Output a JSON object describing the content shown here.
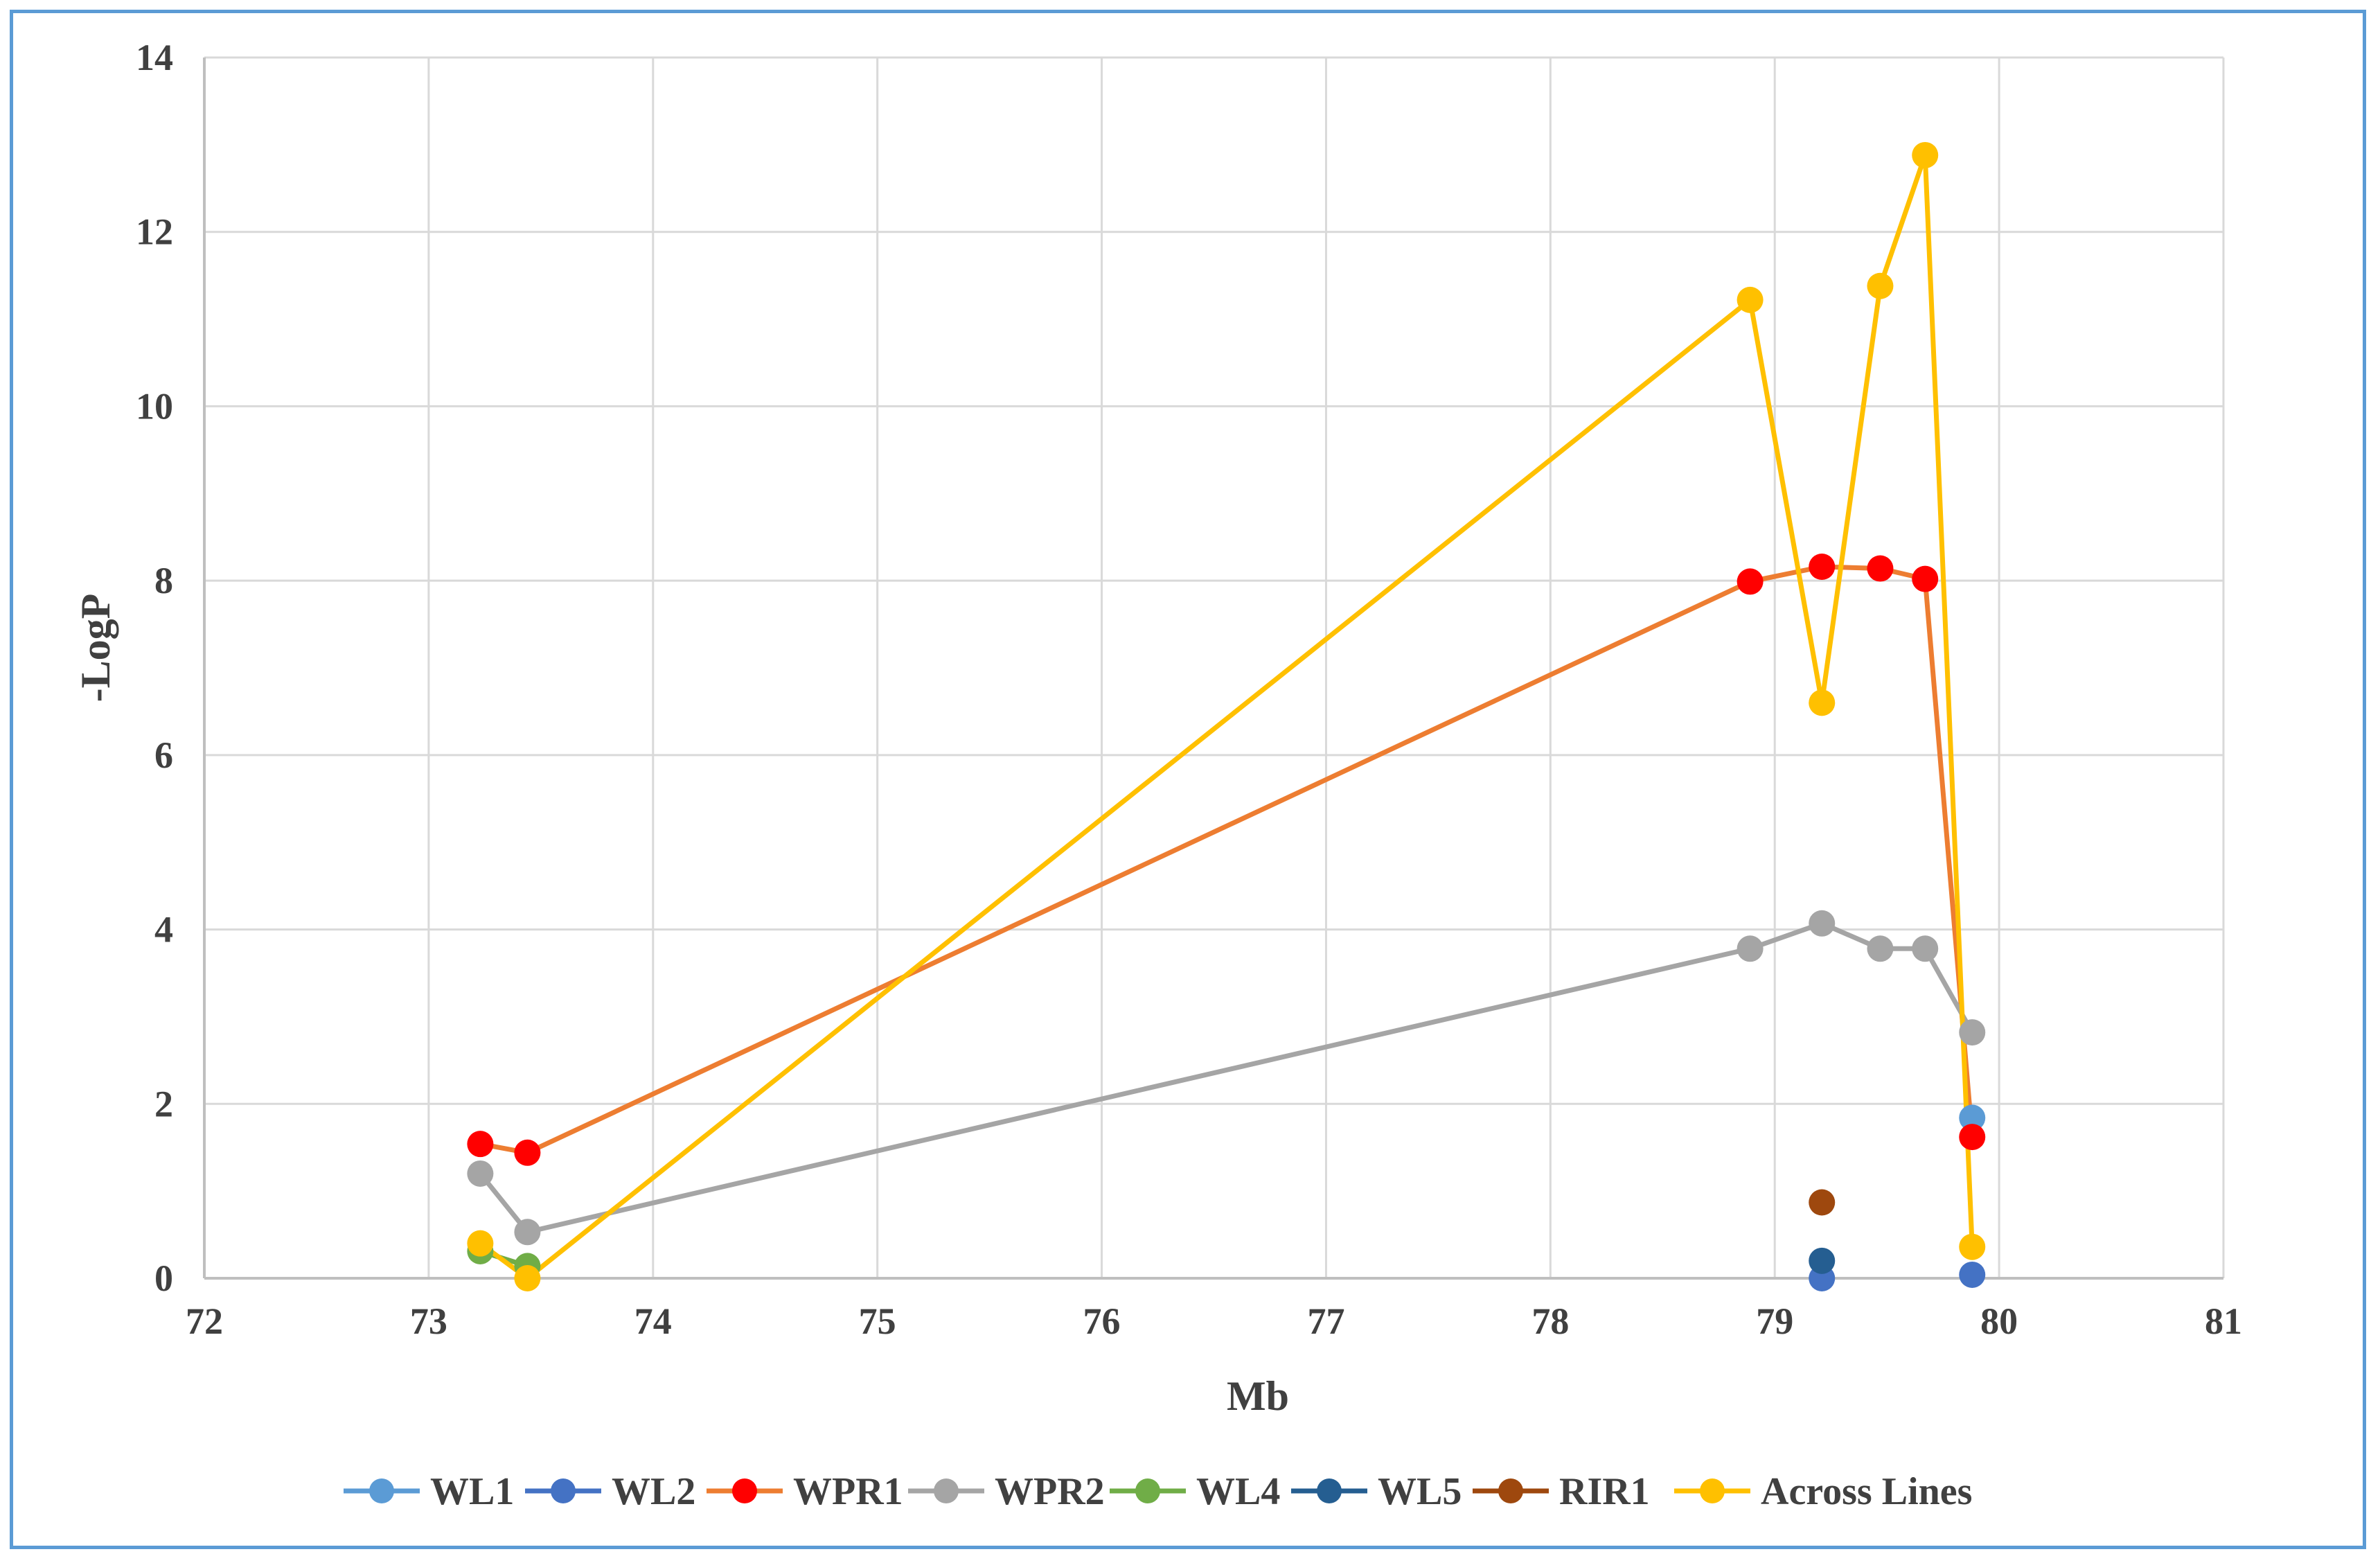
{
  "chart_data": {
    "type": "scatter",
    "title": "",
    "xlabel": "Mb",
    "ylabel": "-LogP",
    "xlim": [
      72,
      81
    ],
    "ylim": [
      0,
      14
    ],
    "xticks": [
      "72",
      "73",
      "74",
      "75",
      "76",
      "77",
      "78",
      "79",
      "80",
      "81"
    ],
    "yticks": [
      "0",
      "2",
      "4",
      "6",
      "8",
      "10",
      "12",
      "14"
    ],
    "grid": true,
    "legend_position": "bottom",
    "series": [
      {
        "name": "WL1",
        "line_color": "#5b9bd5",
        "marker_color": "#5b9bd5",
        "connected": false,
        "points": [
          [
            79.88,
            1.84
          ]
        ]
      },
      {
        "name": "WL2",
        "line_color": "#4472c4",
        "marker_color": "#4472c4",
        "connected": false,
        "points": [
          [
            79.21,
            0.0
          ],
          [
            79.88,
            0.04
          ]
        ]
      },
      {
        "name": "WPR1",
        "line_color": "#ed7d31",
        "marker_color": "#ff0000",
        "connected": true,
        "points": [
          [
            73.23,
            1.54
          ],
          [
            73.44,
            1.44
          ],
          [
            78.89,
            7.99
          ],
          [
            79.21,
            8.16
          ],
          [
            79.47,
            8.14
          ],
          [
            79.67,
            8.02
          ],
          [
            79.88,
            1.62
          ]
        ]
      },
      {
        "name": "WPR2",
        "line_color": "#a5a5a5",
        "marker_color": "#a5a5a5",
        "connected": true,
        "points": [
          [
            73.23,
            1.2
          ],
          [
            73.44,
            0.53
          ],
          [
            78.89,
            3.78
          ],
          [
            79.21,
            4.07
          ],
          [
            79.47,
            3.78
          ],
          [
            79.67,
            3.78
          ],
          [
            79.88,
            2.82
          ]
        ]
      },
      {
        "name": "WL4",
        "line_color": "#70ad47",
        "marker_color": "#70ad47",
        "connected": true,
        "points": [
          [
            73.23,
            0.31
          ],
          [
            73.44,
            0.14
          ]
        ]
      },
      {
        "name": "WL5",
        "line_color": "#255e91",
        "marker_color": "#255e91",
        "connected": false,
        "points": [
          [
            79.21,
            0.2
          ]
        ]
      },
      {
        "name": "RIR1",
        "line_color": "#9e480e",
        "marker_color": "#9e480e",
        "connected": false,
        "points": [
          [
            79.21,
            0.87
          ]
        ]
      },
      {
        "name": "Across Lines",
        "line_color": "#ffc000",
        "marker_color": "#ffc000",
        "connected": true,
        "points": [
          [
            73.23,
            0.4
          ],
          [
            73.44,
            0.0
          ],
          [
            78.89,
            11.22
          ],
          [
            79.21,
            6.6
          ],
          [
            79.47,
            11.38
          ],
          [
            79.67,
            12.88
          ],
          [
            79.88,
            0.36
          ]
        ]
      }
    ]
  }
}
